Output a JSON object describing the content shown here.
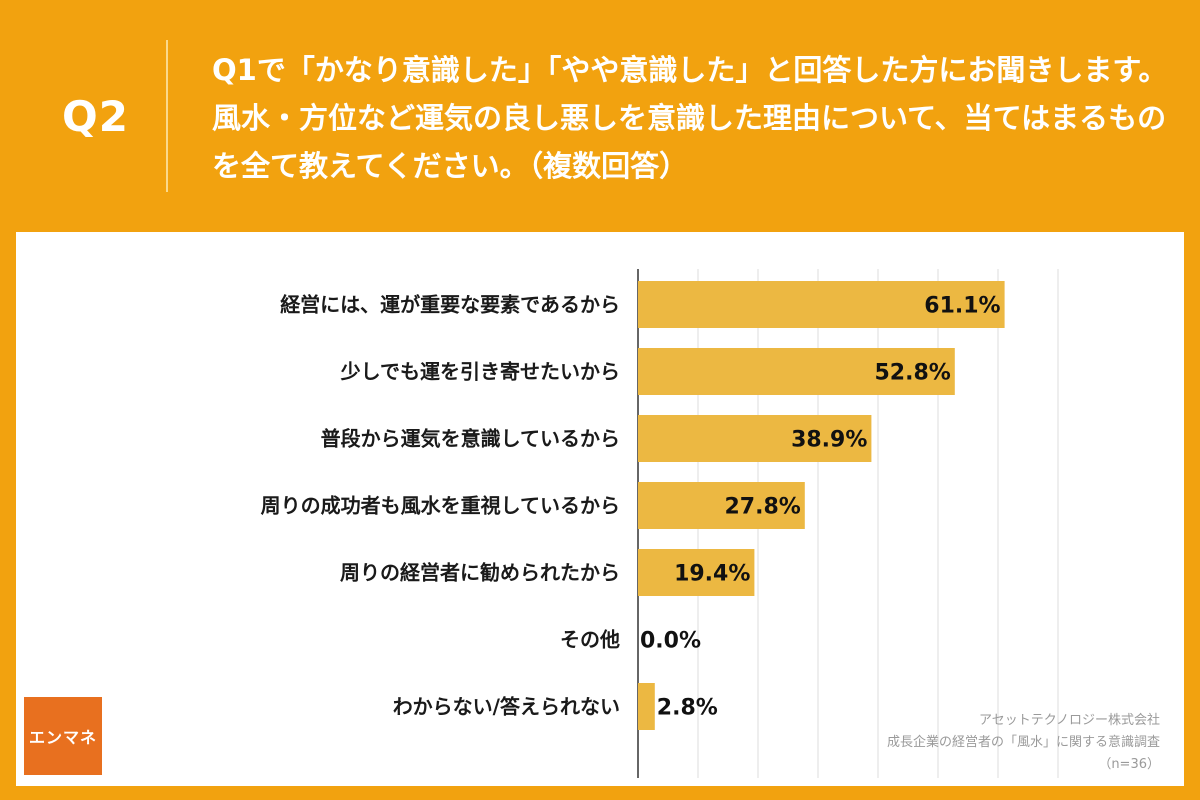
{
  "header": {
    "qnum": "Q2",
    "question": "Q1で「かなり意識した」「やや意識した」と回答した方にお聞きします。風水・方位など運気の良し悪しを意識した理由について、当てはまるものを全て教えてください。（複数回答）"
  },
  "chart_data": {
    "type": "bar",
    "orientation": "horizontal",
    "categories": [
      "経営には、運が重要な要素であるから",
      "少しでも運を引き寄せたいから",
      "普段から運気を意識しているから",
      "周りの成功者も風水を重視しているから",
      "周りの経営者に勧められたから",
      "その他",
      "わからない/答えられない"
    ],
    "values": [
      61.1,
      52.8,
      38.9,
      27.8,
      19.4,
      0.0,
      2.8
    ],
    "value_labels": [
      "61.1%",
      "52.8%",
      "38.9%",
      "27.8%",
      "19.4%",
      "0.0%",
      "2.8%"
    ],
    "xlim": [
      0,
      70
    ],
    "grid": true,
    "bar_color": "#ecb842"
  },
  "logo": {
    "text": "エンマネ"
  },
  "source": {
    "line1": "アセットテクノロジー株式会社",
    "line2": "成長企業の経営者の「風水」に関する意識調査",
    "line3": "（n=36）"
  }
}
